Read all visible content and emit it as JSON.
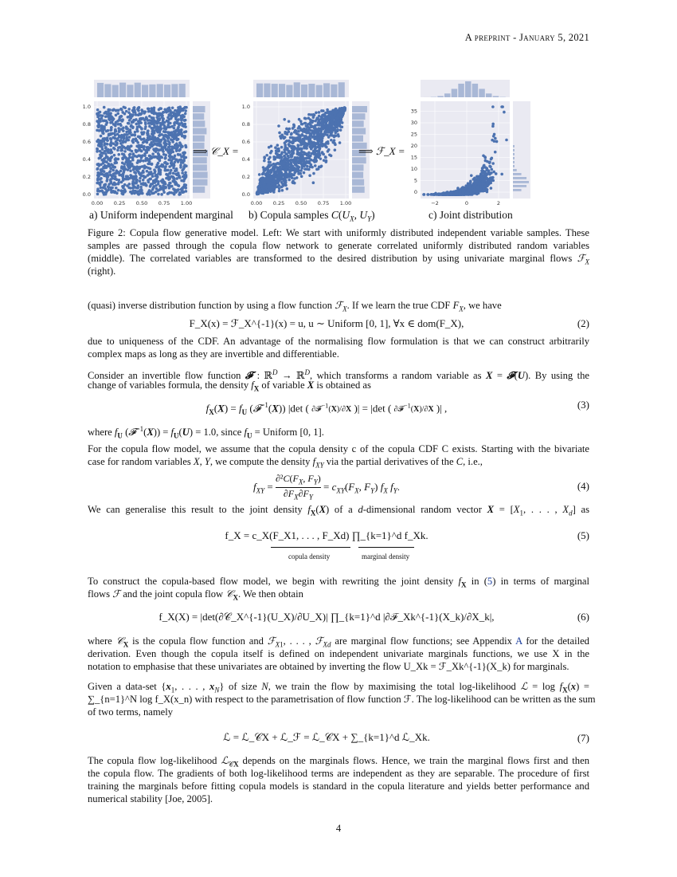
{
  "header": "A preprint - January 5, 2021",
  "figure": {
    "panels": [
      {
        "caption": "a) Uniform independent marginal",
        "xticks": [
          "0.00",
          "0.25",
          "0.50",
          "0.75",
          "1.00"
        ],
        "yticks": [
          "0.0",
          "0.2",
          "0.4",
          "0.6",
          "0.8",
          "1.0"
        ]
      },
      {
        "caption": "b) Copula samples C(U_X, U_Y)",
        "xticks": [
          "0.00",
          "0.25",
          "0.50",
          "0.75",
          "1.00"
        ],
        "yticks": [
          "0.0",
          "0.2",
          "0.4",
          "0.6",
          "0.8",
          "1.0"
        ]
      },
      {
        "caption": "c) Joint distribution",
        "xticks": [
          "−2",
          "0",
          "2"
        ],
        "yticks": [
          "0",
          "5",
          "10",
          "15",
          "20",
          "25",
          "30",
          "35"
        ]
      }
    ],
    "arrow1": "⟹ 𝒞_X =",
    "arrow2": "⟹ ℱ_X =",
    "caption_lines": [
      "Figure 2: Copula flow generative model. Left: We start with uniformly distributed independent variable samples. These",
      "samples are passed through the copula flow network to generate correlated uniformly distributed random variables",
      "(middle). The correlated variables are transformed to the desired distribution by using univariate marginal flows ℱ_X",
      "(right)."
    ],
    "colors": {
      "point": "#4c72b0",
      "hist": "#a9b8d6",
      "bg": "#eaeaf2",
      "link": "#1a3d9c"
    }
  },
  "body": {
    "p1": "(quasi) inverse distribution function by using a flow function ℱ_X. If we learn the true CDF F_X, we have",
    "eq2": "F_X(x) = ℱ_X^{-1}(x) = u, u ∼ Uniform [0, 1],  ∀x ∈ dom(F_X),",
    "eq2_num": "(2)",
    "p2": [
      "due to uniqueness of the CDF. An advantage of the normalising flow formulation is that we can construct arbitrarily",
      "complex maps as long as they are invertible and differentiable."
    ],
    "p3": [
      "Consider an invertible flow function 𝓕 : ℝ^D → ℝ^D, which transforms a random variable as X = 𝓕(U). By using the",
      "change of variables formula, the density f_X of variable X is obtained as"
    ],
    "eq3": "f_X(X) = f_U(𝓕^{-1}(X)) |det(∂𝓕^{-1}(X)/∂X)| = |det(∂𝓕^{-1}(X)/∂X)|,",
    "eq3_num": "(3)",
    "p4": "where f_U(𝓕^{-1}(X)) = f_U(U) = 1.0, since f_U = Uniform [0, 1].",
    "p5": [
      "For the copula flow model, we assume that the copula density c of the copula CDF C exists. Starting with the bivariate",
      "case for random variables X, Y, we compute the density f_XY via the partial derivatives of the C, i.e.,"
    ],
    "eq4": "f_XY = ∂²C(F_X, F_Y)/∂F_X∂F_Y = c_XY(F_X, F_Y) f_X f_Y.",
    "eq4_num": "(4)",
    "p6": "We can generalise this result to the joint density f_X(X) of a d-dimensional random vector X = [X_1, . . . , X_d] as",
    "eq5": "f_X = c_X(F_X1, . . . , F_Xd) ∏_{k=1}^d f_Xk.",
    "eq5_num": "(5)",
    "eq5_label1": "copula density",
    "eq5_label2": "marginal density",
    "p7": [
      "To construct the copula-based flow model, we begin with rewriting the joint density f_X in (5) in terms of marginal",
      "flows ℱ and the joint copula flow 𝒞_X. We then obtain"
    ],
    "eq6": "f_X(X) = |det(∂𝒞_X^{-1}(U_X)/∂U_X)| ∏_{k=1}^d |∂ℱ_Xk^{-1}(X_k)/∂X_k|,",
    "eq6_num": "(6)",
    "p8": [
      "where 𝒞_X is the copula flow function and ℱ_X1, . . . , ℱ_Xd are marginal flow functions; see Appendix A for the detailed",
      "derivation. Even though the copula itself is defined on independent univariate marginals functions, we use X in the",
      "notation to emphasise that these univariates are obtained by inverting the flow U_Xk = ℱ_Xk^{-1}(X_k) for marginals."
    ],
    "p9": [
      "Given a data-set {x_1, . . . , x_N} of size N, we train the flow by maximising the total log-likelihood ℒ = log f_X(x) =",
      "∑_{n=1}^N log f_X(x_n) with respect to the parametrisation of flow function ℱ. The log-likelihood can be written as the sum",
      "of two terms, namely"
    ],
    "eq7": "ℒ = ℒ_𝒞X + ℒ_ℱ = ℒ_𝒞X + ∑_{k=1}^d ℒ_Xk.",
    "eq7_num": "(7)",
    "p10": [
      "The copula flow log-likelihood ℒ_𝒞X depends on the marginals flows. Hence, we train the marginal flows first and then",
      "the copula flow. The gradients of both log-likelihood terms are independent as they are separable. The procedure of first",
      "training the marginals before fitting copula models is standard in the copula literature and yields better performance and",
      "numerical stability [Joe, 2005]."
    ]
  },
  "page_number": "4"
}
